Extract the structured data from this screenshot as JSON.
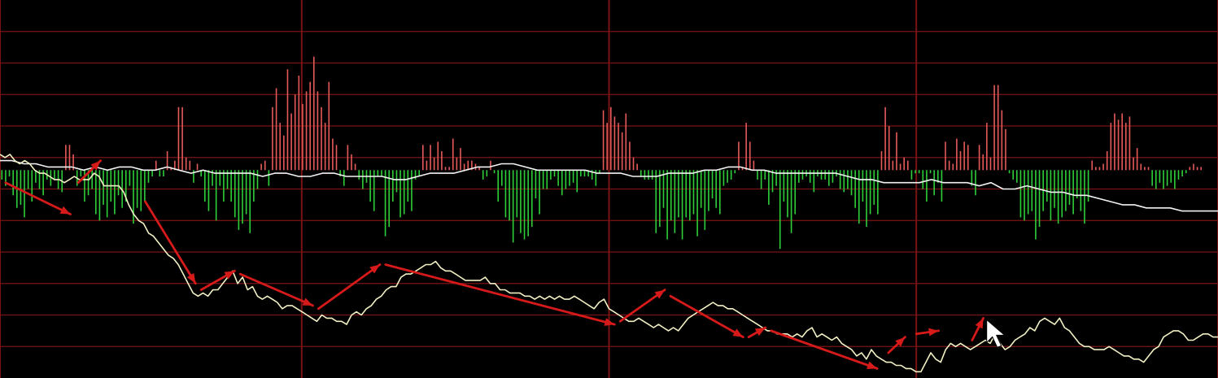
{
  "colors": {
    "background": "#000000",
    "grid": "#7a1414",
    "grid_major": "#7a1414",
    "price_line": "#f2f0c4",
    "avg_line": "#f4f4f4",
    "bar_up": "#e65a5a",
    "bar_down": "#2fcf3a",
    "trend_arrow": "#d61a1a",
    "cursor": "#ffffff"
  },
  "chart_data": {
    "type": "line",
    "title": "",
    "xlabel": "",
    "ylabel": "",
    "grid": true,
    "legend": "none",
    "ylim": [
      0,
      12
    ],
    "histogram": {
      "name": "",
      "baseline": 6.6,
      "values": [
        -0.3,
        -0.5,
        -0.2,
        -0.8,
        -1.2,
        -1.1,
        -1.5,
        -0.6,
        -1.0,
        -0.4,
        -0.6,
        -0.8,
        -0.3,
        -0.5,
        -0.3,
        -0.6,
        -0.7,
        0.8,
        0.8,
        0.5,
        -0.5,
        -0.2,
        -1.0,
        -0.8,
        -0.6,
        -1.4,
        -1.6,
        -1.1,
        -1.5,
        -1.0,
        -1.4,
        -0.8,
        -1.2,
        -1.0,
        -0.5,
        -1.7,
        -1.2,
        -1.3,
        -1.0,
        -0.4,
        -0.2,
        0.3,
        -0.2,
        -0.2,
        0.6,
        0.1,
        0.3,
        2.0,
        2.0,
        0.4,
        0.3,
        -0.4,
        0.2,
        -0.2,
        -1.0,
        -1.3,
        -0.5,
        -1.6,
        -0.5,
        -1.0,
        -0.6,
        -1.0,
        -1.5,
        -1.9,
        -1.7,
        -1.4,
        -2.0,
        -1.0,
        -0.6,
        0.2,
        0.3,
        -0.5,
        2.0,
        2.6,
        1.5,
        1.1,
        3.2,
        1.8,
        2.4,
        3.0,
        2.1,
        2.5,
        2.8,
        3.6,
        2.5,
        2.0,
        1.5,
        2.8,
        1.0,
        0.8,
        -0.2,
        -0.5,
        0.8,
        0.5,
        0.2,
        -0.3,
        -0.6,
        -0.4,
        -1.0,
        -1.3,
        -0.2,
        -0.2,
        -2.1,
        -1.8,
        -1.0,
        -0.7,
        -1.5,
        -1.4,
        -1.0,
        -1.3,
        -0.3,
        -0.2,
        0.8,
        0.3,
        0.8,
        0.4,
        0.9,
        0.6,
        0.1,
        0.1,
        1.0,
        0.4,
        0.7,
        0.2,
        0.3,
        0.3,
        0.2,
        0.1,
        -0.3,
        -0.2,
        0.3,
        -0.1,
        -1.0,
        -0.5,
        -1.5,
        -1.6,
        -2.3,
        -1.5,
        -2.0,
        -2.2,
        -2.1,
        -1.8,
        -0.9,
        -1.4,
        -0.6,
        -0.6,
        -0.3,
        -0.2,
        -0.5,
        -0.8,
        -0.6,
        -0.5,
        -0.4,
        -0.7,
        -0.2,
        -0.2,
        -0.2,
        -0.3,
        -0.5,
        -0.1,
        1.9,
        1.5,
        2.0,
        1.7,
        1.5,
        1.2,
        1.8,
        0.9,
        0.4,
        0.2,
        -0.2,
        -0.3,
        -0.3,
        -0.3,
        -2.0,
        -1.8,
        -1.2,
        -2.2,
        -1.6,
        -2.0,
        -1.5,
        -2.2,
        -1.5,
        -1.6,
        -1.4,
        -2.1,
        -1.2,
        -1.9,
        -1.3,
        -0.9,
        -1.2,
        -1.4,
        -0.5,
        -0.4,
        -0.3,
        -0.1,
        0.9,
        0.1,
        1.5,
        0.9,
        0.3,
        -0.3,
        -0.6,
        -0.3,
        -1.1,
        -0.7,
        -0.5,
        -2.5,
        -1.0,
        -1.5,
        -2.0,
        -1.4,
        -0.4,
        -0.3,
        -0.2,
        -0.4,
        -0.7,
        -0.2,
        -0.3,
        -0.3,
        -0.5,
        -0.4,
        -0.2,
        -0.6,
        -0.7,
        -0.6,
        -0.8,
        -1.2,
        -1.7,
        -1.0,
        -1.8,
        -1.4,
        -1.1,
        -1.4,
        0.6,
        2.0,
        1.4,
        0.3,
        1.2,
        0.2,
        0.4,
        0.3,
        -0.3,
        -0.1,
        -0.1,
        -0.6,
        -1.0,
        -0.1,
        -0.8,
        -0.4,
        -1.0,
        0.9,
        0.3,
        0.2,
        1.0,
        0.6,
        0.9,
        0.8,
        -0.5,
        -0.8,
        0.8,
        0.5,
        1.5,
        0.4,
        2.7,
        2.7,
        1.9,
        1.3,
        -0.1,
        -0.3,
        -0.4,
        -1.5,
        -1.6,
        -1.4,
        -1.3,
        -2.2,
        -1.8,
        -1.3,
        -1.0,
        -1.6,
        -1.2,
        -1.7,
        -1.5,
        -1.3,
        -1.1,
        -1.4,
        -0.9,
        -1.3,
        -1.7,
        -1.0,
        0.3,
        0.1,
        0.1,
        0.2,
        0.6,
        1.5,
        1.8,
        1.6,
        1.8,
        1.5,
        1.7,
        0.4,
        0.7,
        0.2,
        0.1,
        0.1,
        -0.5,
        -0.6,
        -0.4,
        -0.6,
        -0.5,
        -0.4,
        -0.6,
        -0.3,
        -0.2,
        -0.1,
        0.1,
        0.2,
        0.1,
        0.1,
        0.0,
        0.0,
        0.0,
        0.0
      ]
    },
    "series": [
      {
        "name": "",
        "role": "price",
        "values": [
          7.1,
          7.0,
          7.1,
          6.9,
          6.8,
          6.9,
          6.8,
          6.6,
          6.5,
          6.5,
          6.4,
          6.3,
          6.3,
          6.2,
          6.3,
          6.4,
          6.3,
          6.3,
          6.3,
          6.5,
          6.4,
          6.1,
          6.1,
          6.1,
          6.1,
          5.9,
          5.5,
          5.2,
          5.0,
          4.9,
          4.6,
          4.5,
          4.3,
          4.1,
          3.9,
          3.8,
          3.6,
          3.3,
          3.0,
          2.7,
          2.6,
          2.7,
          2.6,
          2.8,
          2.8,
          3.0,
          3.2,
          3.4,
          3.0,
          3.2,
          2.8,
          2.9,
          2.6,
          2.5,
          2.6,
          2.5,
          2.4,
          2.2,
          2.3,
          2.3,
          2.2,
          2.1,
          2.0,
          1.9,
          1.8,
          2.0,
          1.9,
          1.9,
          1.8,
          1.8,
          1.7,
          2.0,
          2.1,
          2.0,
          2.2,
          2.3,
          2.5,
          2.6,
          2.8,
          2.9,
          2.9,
          3.2,
          3.3,
          3.3,
          3.4,
          3.5,
          3.6,
          3.6,
          3.7,
          3.5,
          3.4,
          3.4,
          3.3,
          3.2,
          3.1,
          3.1,
          3.1,
          3.1,
          3.2,
          3.0,
          3.0,
          2.8,
          2.8,
          2.7,
          2.7,
          2.7,
          2.6,
          2.6,
          2.5,
          2.6,
          2.5,
          2.6,
          2.5,
          2.6,
          2.5,
          2.5,
          2.6,
          2.5,
          2.4,
          2.3,
          2.2,
          2.4,
          2.5,
          2.2,
          2.1,
          2.0,
          1.9,
          1.8,
          1.8,
          1.9,
          1.8,
          1.7,
          1.6,
          1.7,
          1.6,
          1.5,
          1.6,
          1.5,
          1.7,
          1.9,
          2.0,
          2.1,
          2.2,
          2.3,
          2.4,
          2.3,
          2.3,
          2.2,
          2.2,
          2.1,
          2.0,
          1.9,
          1.8,
          1.7,
          1.6,
          1.5,
          1.5,
          1.4,
          1.4,
          1.4,
          1.3,
          1.4,
          1.3,
          1.5,
          1.6,
          1.3,
          1.4,
          1.3,
          1.2,
          1.3,
          1.1,
          1.0,
          0.9,
          0.7,
          0.8,
          0.6,
          0.9,
          0.7,
          0.6,
          0.5,
          0.5,
          0.4,
          0.4,
          0.3,
          0.3,
          0.2,
          0.2,
          0.5,
          0.8,
          0.6,
          0.5,
          0.9,
          1.1,
          1.0,
          1.1,
          1.0,
          0.9,
          1.0,
          1.1,
          1.2,
          1.1,
          1.4,
          1.1,
          0.9,
          1.0,
          1.2,
          1.3,
          1.4,
          1.6,
          1.5,
          1.8,
          1.9,
          1.8,
          1.7,
          1.9,
          1.6,
          1.5,
          1.3,
          1.1,
          1.0,
          1.0,
          0.9,
          0.9,
          0.9,
          1.0,
          0.9,
          0.8,
          0.7,
          0.7,
          0.6,
          0.6,
          0.5,
          0.7,
          0.9,
          1.0,
          1.3,
          1.4,
          1.5,
          1.5,
          1.4,
          1.2,
          1.2,
          1.3,
          1.4,
          1.4,
          1.3,
          1.3
        ],
        "color_key": "price_line"
      },
      {
        "name": "",
        "role": "average",
        "values": [
          6.9,
          6.9,
          6.8,
          6.8,
          6.7,
          6.7,
          6.7,
          6.6,
          6.7,
          6.6,
          6.7,
          6.7,
          6.6,
          6.6,
          6.7,
          6.6,
          6.5,
          6.6,
          6.5,
          6.5,
          6.5,
          6.5,
          6.4,
          6.5,
          6.5,
          6.4,
          6.4,
          6.5,
          6.5,
          6.4,
          6.4,
          6.4,
          6.4,
          6.3,
          6.3,
          6.4,
          6.5,
          6.5,
          6.5,
          6.6,
          6.7,
          6.7,
          6.8,
          6.8,
          6.7,
          6.6,
          6.6,
          6.6,
          6.6,
          6.6,
          6.5,
          6.5,
          6.5,
          6.4,
          6.4,
          6.4,
          6.5,
          6.5,
          6.5,
          6.6,
          6.6,
          6.7,
          6.7,
          6.6,
          6.6,
          6.5,
          6.5,
          6.5,
          6.5,
          6.5,
          6.5,
          6.4,
          6.3,
          6.3,
          6.2,
          6.2,
          6.2,
          6.2,
          6.3,
          6.2,
          6.2,
          6.2,
          6.1,
          6.2,
          6.0,
          6.0,
          6.1,
          6.0,
          5.9,
          5.9,
          5.8,
          5.8,
          5.7,
          5.6,
          5.5,
          5.5,
          5.4,
          5.4,
          5.4,
          5.3,
          5.3,
          5.3,
          5.3
        ]
      }
    ],
    "trend_arrows": [
      {
        "from": [
          0.5,
          6.2
        ],
        "to": [
          6.3,
          5.2
        ]
      },
      {
        "from": [
          7.0,
          6.2
        ],
        "to": [
          9.0,
          6.9
        ]
      },
      {
        "from": [
          13.0,
          5.6
        ],
        "to": [
          17.5,
          3.0
        ]
      },
      {
        "from": [
          18.0,
          2.8
        ],
        "to": [
          21.0,
          3.4
        ]
      },
      {
        "from": [
          21.5,
          3.3
        ],
        "to": [
          28.0,
          2.3
        ]
      },
      {
        "from": [
          28.5,
          2.2
        ],
        "to": [
          34.0,
          3.6
        ]
      },
      {
        "from": [
          34.5,
          3.6
        ],
        "to": [
          55.0,
          1.7
        ]
      },
      {
        "from": [
          55.5,
          1.8
        ],
        "to": [
          59.5,
          2.8
        ]
      },
      {
        "from": [
          60.0,
          2.6
        ],
        "to": [
          66.5,
          1.3
        ]
      },
      {
        "from": [
          67.0,
          1.3
        ],
        "to": [
          68.5,
          1.6
        ]
      },
      {
        "from": [
          69.0,
          1.5
        ],
        "to": [
          78.5,
          0.3
        ]
      },
      {
        "from": [
          79.5,
          0.8
        ],
        "to": [
          81.0,
          1.3
        ]
      },
      {
        "from": [
          82.0,
          1.4
        ],
        "to": [
          84.0,
          1.5
        ]
      },
      {
        "from": [
          87.0,
          1.2
        ],
        "to": [
          88.0,
          1.9
        ]
      }
    ],
    "x_range": [
      0,
      109
    ],
    "v_grid_positions": [
      0,
      27,
      54.5,
      82,
      109
    ]
  },
  "cursor": {
    "icon": "mouse-pointer-icon",
    "x": 88.3,
    "y": 1.85
  }
}
